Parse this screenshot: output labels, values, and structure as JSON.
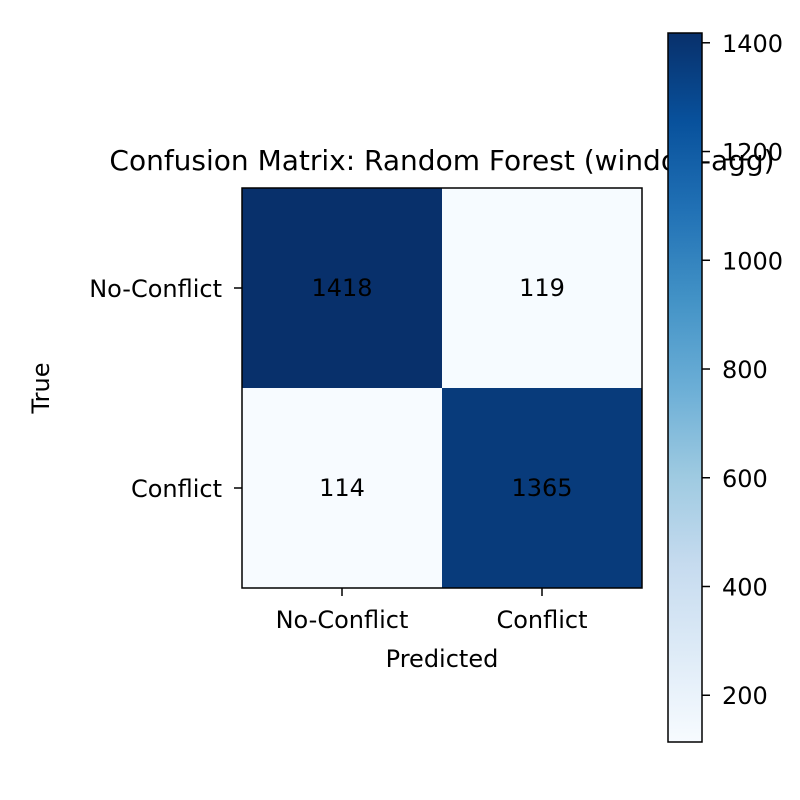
{
  "chart_data": {
    "type": "heatmap",
    "title": "Confusion Matrix: Random Forest (window-agg)",
    "xlabel": "Predicted",
    "ylabel": "True",
    "x_categories": [
      "No-Conflict",
      "Conflict"
    ],
    "y_categories": [
      "No-Conflict",
      "Conflict"
    ],
    "values": [
      [
        1418,
        119
      ],
      [
        114,
        1365
      ]
    ],
    "colormap": "Blues",
    "colorbar": {
      "range": [
        114,
        1418
      ],
      "ticks": [
        200,
        400,
        600,
        800,
        1000,
        1200,
        1400
      ]
    },
    "grid": false
  }
}
